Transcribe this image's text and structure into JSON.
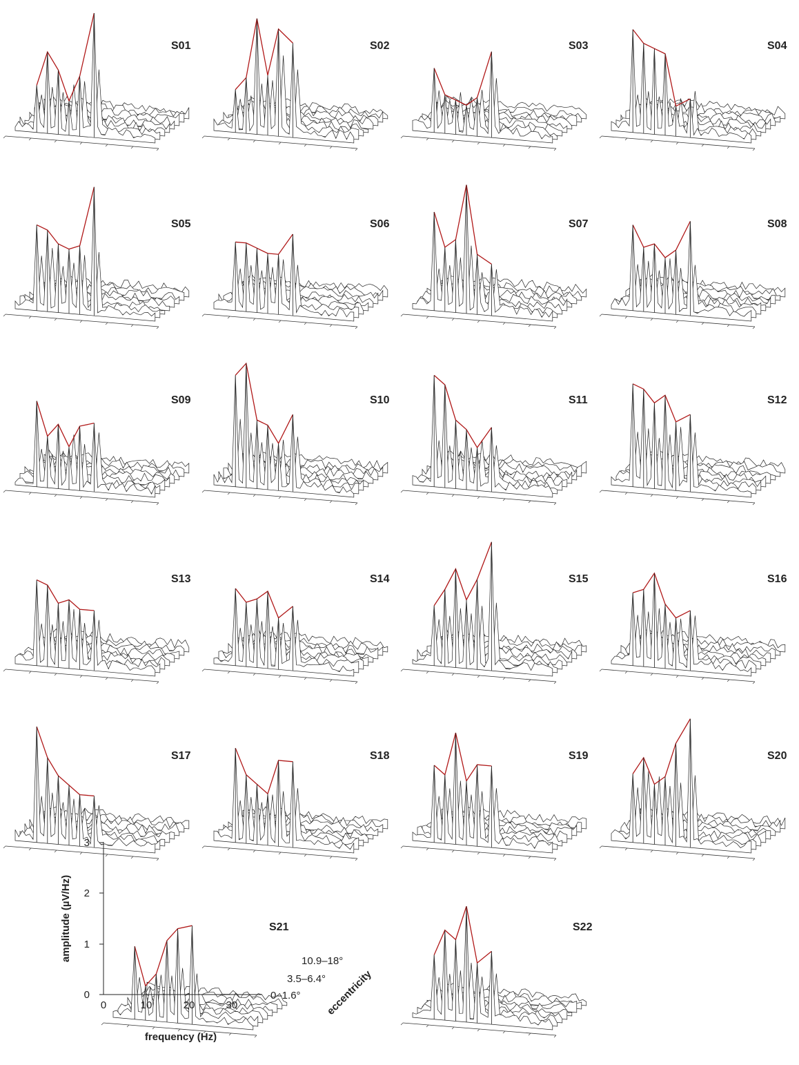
{
  "chart_data": {
    "type": "waterfall-3d",
    "title": "",
    "xlabel": "frequency (Hz)",
    "ylabel": "amplitude (µV/Hz)",
    "zlabel": "eccentricity",
    "x_ticks": [
      "0",
      "10",
      "20",
      "30"
    ],
    "y_ticks": [
      "0",
      "1",
      "2",
      "3"
    ],
    "z_ticks": [
      "0–1.6°",
      "3.5–6.4°",
      "10.9–18°"
    ],
    "xlim": [
      0,
      36
    ],
    "ylim": [
      0,
      3
    ],
    "panels": [
      {
        "label": "S01",
        "peaks": [
          [
            1.1,
            1.9,
            1.5,
            0.8,
            1.4,
            2.9
          ],
          [
            0.8,
            1.0,
            0.9,
            1.1,
            1.2,
            1.5
          ]
        ]
      },
      {
        "label": "S02",
        "peaks": [
          [
            1.0,
            1.3,
            2.7,
            1.4,
            2.5,
            2.2
          ],
          [
            0.7,
            0.8,
            1.1,
            1.2,
            1.8,
            1.5
          ]
        ]
      },
      {
        "label": "S03",
        "peaks": [
          [
            1.5,
            0.9,
            0.8,
            0.7,
            0.9,
            2.0
          ],
          [
            0.9,
            0.7,
            0.9,
            0.8,
            1.0,
            1.3
          ]
        ]
      },
      {
        "label": "S04",
        "peaks": [
          [
            2.4,
            2.1,
            2.0,
            1.9,
            0.7,
            0.9
          ],
          [
            0.8,
            0.9,
            0.8,
            0.7,
            0.8,
            1.0
          ]
        ]
      },
      {
        "label": "S05",
        "peaks": [
          [
            2.0,
            1.9,
            1.6,
            1.5,
            1.6,
            3.0
          ],
          [
            1.2,
            1.4,
            1.0,
            1.1,
            1.3,
            1.4
          ]
        ]
      },
      {
        "label": "S06",
        "peaks": [
          [
            1.6,
            1.6,
            1.5,
            1.4,
            1.4,
            1.9
          ],
          [
            0.9,
            1.0,
            0.9,
            1.0,
            1.2,
            1.1
          ]
        ]
      },
      {
        "label": "S07",
        "peaks": [
          [
            2.3,
            1.5,
            1.7,
            3.0,
            1.4,
            1.2
          ],
          [
            0.9,
            1.0,
            1.2,
            1.5,
            0.9,
            1.0
          ]
        ]
      },
      {
        "label": "S08",
        "peaks": [
          [
            2.0,
            1.5,
            1.6,
            1.3,
            1.5,
            2.2
          ],
          [
            1.0,
            1.1,
            0.9,
            1.2,
            1.0,
            1.1
          ]
        ]
      },
      {
        "label": "S09",
        "peaks": [
          [
            2.0,
            1.2,
            1.5,
            1.0,
            1.5,
            1.6
          ],
          [
            0.8,
            0.7,
            0.8,
            1.2,
            1.0,
            1.3
          ]
        ]
      },
      {
        "label": "S10",
        "peaks": [
          [
            2.6,
            2.9,
            1.6,
            1.5,
            1.1,
            1.8
          ],
          [
            1.5,
            1.2,
            1.0,
            1.0,
            1.1,
            1.2
          ]
        ]
      },
      {
        "label": "S11",
        "peaks": [
          [
            2.6,
            2.4,
            1.6,
            1.4,
            1.0,
            1.5
          ],
          [
            1.0,
            0.9,
            0.8,
            0.9,
            1.1,
            1.0
          ]
        ]
      },
      {
        "label": "S12",
        "peaks": [
          [
            2.4,
            2.3,
            2.0,
            2.2,
            1.6,
            1.8
          ],
          [
            1.2,
            1.3,
            1.1,
            1.2,
            1.4,
            1.3
          ]
        ]
      },
      {
        "label": "S13",
        "peaks": [
          [
            2.0,
            1.9,
            1.5,
            1.6,
            1.4,
            1.4
          ],
          [
            0.9,
            0.9,
            1.0,
            1.3,
            1.0,
            1.1
          ]
        ]
      },
      {
        "label": "S14",
        "peaks": [
          [
            1.8,
            1.5,
            1.6,
            1.8,
            1.2,
            1.5
          ],
          [
            0.8,
            0.9,
            1.0,
            0.9,
            1.0,
            1.1
          ]
        ]
      },
      {
        "label": "S15",
        "peaks": [
          [
            1.4,
            1.8,
            2.3,
            1.6,
            2.1,
            3.0
          ],
          [
            1.0,
            1.1,
            1.3,
            1.2,
            1.4,
            1.5
          ]
        ]
      },
      {
        "label": "S16",
        "peaks": [
          [
            1.7,
            1.8,
            2.2,
            1.5,
            1.2,
            1.4
          ],
          [
            1.1,
            1.2,
            1.3,
            1.0,
            1.1,
            1.2
          ]
        ]
      },
      {
        "label": "S17",
        "peaks": [
          [
            2.7,
            2.0,
            1.6,
            1.4,
            1.2,
            1.2
          ],
          [
            1.0,
            1.1,
            0.9,
            1.0,
            0.8,
            0.9
          ]
        ]
      },
      {
        "label": "S18",
        "peaks": [
          [
            2.2,
            1.6,
            1.4,
            1.2,
            2.0,
            2.0
          ],
          [
            0.9,
            1.0,
            0.9,
            1.1,
            1.2,
            1.3
          ]
        ]
      },
      {
        "label": "S19",
        "peaks": [
          [
            1.8,
            1.6,
            2.6,
            1.5,
            1.9,
            1.9
          ],
          [
            1.0,
            1.2,
            1.4,
            1.1,
            1.2,
            1.3
          ]
        ]
      },
      {
        "label": "S20",
        "peaks": [
          [
            1.6,
            2.0,
            1.4,
            1.6,
            2.4,
            3.0
          ],
          [
            1.2,
            1.6,
            1.5,
            1.3,
            1.4,
            1.6
          ]
        ]
      },
      {
        "label": "S21",
        "peaks": [
          [
            1.7,
            0.8,
            1.1,
            1.9,
            2.2,
            2.3
          ],
          [
            0.9,
            0.7,
            1.0,
            1.0,
            1.2,
            1.1
          ]
        ]
      },
      {
        "label": "S22",
        "peaks": [
          [
            1.5,
            2.1,
            1.9,
            2.7,
            1.4,
            1.7
          ],
          [
            0.9,
            1.0,
            1.1,
            1.3,
            1.0,
            1.1
          ]
        ]
      }
    ]
  }
}
